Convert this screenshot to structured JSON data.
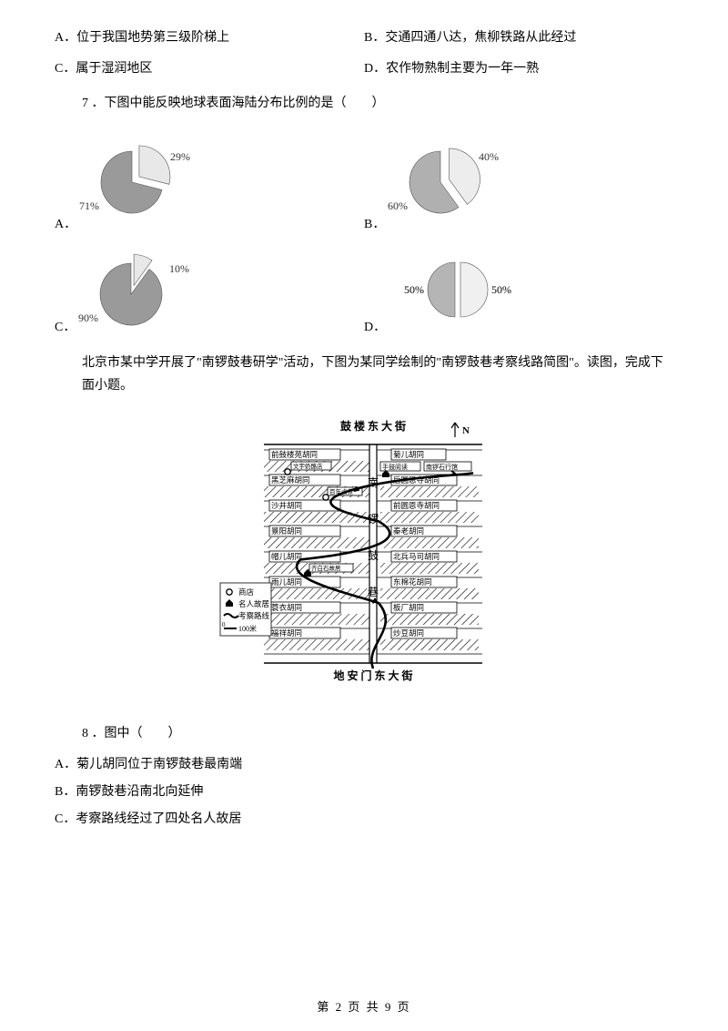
{
  "q6_options": {
    "A": "A．位于我国地势第三级阶梯上",
    "B": "B．交通四通八达，焦柳铁路从此经过",
    "C": "C．属于湿润地区",
    "D": "D．农作物熟制主要为一年一熟"
  },
  "q7": {
    "text": "7 ．下图中能反映地球表面海陆分布比例的是（　　）",
    "pies": {
      "A": {
        "label_lower": "71%",
        "label_upper": "29%",
        "big": 71,
        "col_big": "#9a9a9a",
        "col_small": "#e8e8e8"
      },
      "B": {
        "label_lower": "60%",
        "label_upper": "40%",
        "big": 60,
        "col_big": "#b0b0b0",
        "col_small": "#ededed"
      },
      "C": {
        "label_lower": "90%",
        "label_upper": "10%",
        "big": 90,
        "col_big": "#9a9a9a",
        "col_small": "#e8e8e8"
      },
      "D": {
        "label_lower": "50%",
        "label_upper": "50%",
        "big": 50,
        "col_big": "#b5b5b5",
        "col_small": "#f0f0f0"
      }
    },
    "option_letters": {
      "A": "A．",
      "B": "B．",
      "C": "C．",
      "D": "D．"
    }
  },
  "context": "北京市某中学开展了\"南锣鼓巷研学\"活动，下图为某同学绘制的\"南锣鼓巷考察线路简图\"。读图，完成下面小题。",
  "map": {
    "top_street": "鼓 楼 东 大 街",
    "bottom_street": "地 安 门 东 大 街",
    "north": "N",
    "center": "南 锣 鼓 巷",
    "left": [
      "前鼓楼苑胡同",
      "黑芝麻胡同",
      "沙井胡同",
      "景阳胡同",
      "帽儿胡同",
      "雨儿胡同",
      "蓑衣胡同",
      "福祥胡同"
    ],
    "right_top": "菊儿胡同",
    "right_top_small": [
      "手鼓阅读",
      "南锣石行馆"
    ],
    "right": [
      "后圆恩寺胡同",
      "前圆恩寺胡同",
      "秦老胡同",
      "北兵马司胡同",
      "东棉花胡同",
      "板厂胡同",
      "炒豆胡同"
    ],
    "left_small": [
      "文宇奶酪店",
      "百年卤煮",
      "齐白石故居"
    ],
    "legend": {
      "shop": "商店",
      "home": "名人故居",
      "route": "考察路线",
      "scale_0": "0",
      "scale_100": "100米"
    }
  },
  "q8": {
    "text": "8 ．图中（　　）",
    "A": "A．菊儿胡同位于南锣鼓巷最南端",
    "B": "B．南锣鼓巷沿南北向延伸",
    "C": "C．考察路线经过了四处名人故居"
  },
  "footer": "第 2 页 共 9 页"
}
